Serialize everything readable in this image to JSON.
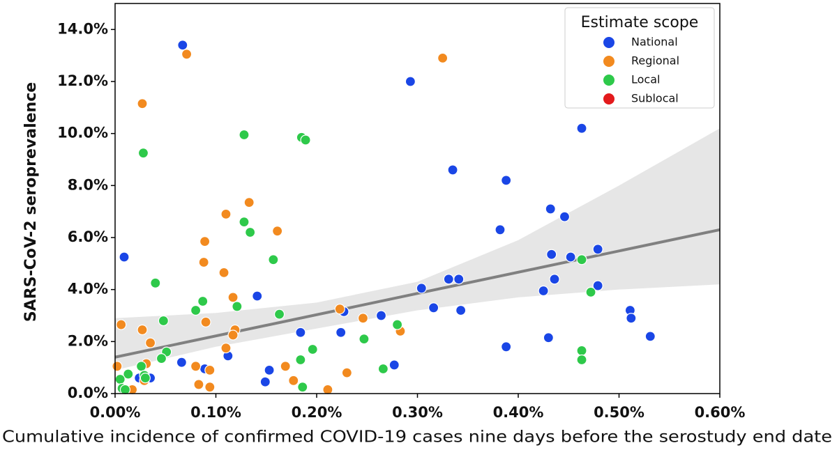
{
  "chart_data": {
    "type": "scatter",
    "xlabel": "Cumulative incidence of confirmed COVID-19 cases nine days before the serostudy end date",
    "ylabel": "SARS-CoV-2 seroprevalence",
    "legend_title": "Estimate scope",
    "legend_position": "upper right",
    "xlim": [
      0,
      0.6
    ],
    "ylim": [
      0,
      15
    ],
    "xticks": [
      {
        "value": 0,
        "label": "0.00%"
      },
      {
        "value": 0.1,
        "label": "0.10%"
      },
      {
        "value": 0.2,
        "label": "0.20%"
      },
      {
        "value": 0.3,
        "label": "0.30%"
      },
      {
        "value": 0.4,
        "label": "0.40%"
      },
      {
        "value": 0.5,
        "label": "0.50%"
      },
      {
        "value": 0.6,
        "label": "0.60%"
      }
    ],
    "yticks": [
      {
        "value": 0,
        "label": "0.0%"
      },
      {
        "value": 2,
        "label": "2.0%"
      },
      {
        "value": 4,
        "label": "4.0%"
      },
      {
        "value": 6,
        "label": "6.0%"
      },
      {
        "value": 8,
        "label": "8.0%"
      },
      {
        "value": 10,
        "label": "10.0%"
      },
      {
        "value": 12,
        "label": "12.0%"
      },
      {
        "value": 14,
        "label": "14.0%"
      }
    ],
    "series": [
      {
        "name": "National",
        "color": "#1a46e6",
        "x": [
          0.067,
          0.293,
          0.009,
          0.335,
          0.388,
          0.463,
          0.382,
          0.432,
          0.446,
          0.433,
          0.452,
          0.479,
          0.479,
          0.436,
          0.425,
          0.331,
          0.341,
          0.304,
          0.316,
          0.343,
          0.264,
          0.227,
          0.224,
          0.184,
          0.141,
          0.511,
          0.512,
          0.531,
          0.43,
          0.388,
          0.277,
          0.112,
          0.066,
          0.089,
          0.153,
          0.149,
          0.024,
          0.035
        ],
        "values": [
          13.4,
          12.0,
          5.25,
          8.6,
          8.2,
          10.2,
          6.3,
          7.1,
          6.8,
          5.35,
          5.25,
          5.55,
          4.15,
          4.4,
          3.95,
          4.4,
          4.4,
          4.05,
          3.3,
          3.2,
          3.0,
          3.15,
          2.35,
          2.35,
          3.75,
          3.2,
          2.9,
          2.2,
          2.15,
          1.8,
          1.1,
          1.45,
          1.2,
          0.95,
          0.9,
          0.45,
          0.6,
          0.6
        ]
      },
      {
        "name": "Regional",
        "color": "#f28a1f",
        "x": [
          0.071,
          0.325,
          0.027,
          0.133,
          0.11,
          0.161,
          0.089,
          0.088,
          0.108,
          0.117,
          0.119,
          0.117,
          0.09,
          0.027,
          0.035,
          0.006,
          0.11,
          0.223,
          0.246,
          0.283,
          0.169,
          0.177,
          0.23,
          0.211,
          0.094,
          0.094,
          0.08,
          0.083,
          0.031,
          0.029,
          0.002,
          0.017
        ],
        "values": [
          13.05,
          12.9,
          11.15,
          7.35,
          6.9,
          6.25,
          5.85,
          5.05,
          4.65,
          3.7,
          2.45,
          2.25,
          2.75,
          2.45,
          1.95,
          2.65,
          1.75,
          3.25,
          2.9,
          2.4,
          1.05,
          0.5,
          0.8,
          0.15,
          0.9,
          0.25,
          1.05,
          0.35,
          1.15,
          0.5,
          1.05,
          0.15
        ]
      },
      {
        "name": "Local",
        "color": "#2ec94a",
        "x": [
          0.028,
          0.128,
          0.185,
          0.189,
          0.128,
          0.134,
          0.157,
          0.04,
          0.087,
          0.08,
          0.121,
          0.163,
          0.048,
          0.051,
          0.046,
          0.026,
          0.013,
          0.029,
          0.03,
          0.005,
          0.007,
          0.01,
          0.196,
          0.184,
          0.186,
          0.247,
          0.28,
          0.266,
          0.463,
          0.472,
          0.463,
          0.463
        ],
        "values": [
          9.25,
          9.95,
          9.85,
          9.75,
          6.6,
          6.2,
          5.15,
          4.25,
          3.55,
          3.2,
          3.35,
          3.05,
          2.8,
          1.6,
          1.35,
          1.05,
          0.75,
          0.7,
          0.6,
          0.55,
          0.2,
          0.15,
          1.7,
          1.3,
          0.25,
          2.1,
          2.65,
          0.95,
          5.15,
          3.9,
          1.65,
          1.3
        ]
      },
      {
        "name": "Sublocal",
        "color": "#e31a1c",
        "x": [],
        "values": []
      }
    ],
    "trend_line": {
      "color": "#808080",
      "x": [
        0,
        0.6
      ],
      "values": [
        1.4,
        6.3
      ]
    },
    "band": {
      "color": "#e6e6e6",
      "x": [
        0,
        0.1,
        0.2,
        0.3,
        0.4,
        0.5,
        0.6
      ],
      "lower": [
        0.9,
        1.8,
        2.5,
        3.2,
        3.7,
        4.0,
        4.2
      ],
      "upper": [
        2.9,
        3.1,
        3.5,
        4.3,
        5.9,
        8.0,
        10.2
      ]
    }
  }
}
